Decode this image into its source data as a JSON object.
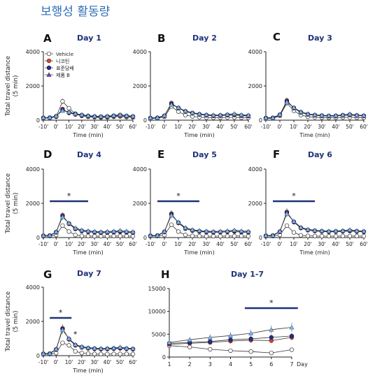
{
  "page": {
    "title": "보행성 활동량"
  },
  "colors": {
    "vehicle": "#ffffff",
    "nicotine": "#d9452c",
    "standard": "#1f2f8f",
    "treatment_b": "#7b3fa0",
    "star": "#1f3278",
    "day_title": "#1f3278",
    "series4": "#8fb4dc"
  },
  "legend": {
    "vehicle": "Vehicle",
    "nicotine": "니코틴",
    "standard": "표준담배",
    "treatment_b": "제품 B"
  },
  "chart_data": [
    {
      "panel": "A",
      "title": "Day 1",
      "type": "line",
      "ylabel": "Total travel distance\n(5 min)",
      "xlabel": "Time (min)",
      "x": [
        -10,
        -5,
        0,
        5,
        10,
        15,
        20,
        25,
        30,
        35,
        40,
        45,
        50,
        55,
        60
      ],
      "ylim": [
        0,
        4000
      ],
      "yticks": [
        0,
        2000,
        4000
      ],
      "xticks": [
        "-10'",
        "0'",
        "10'",
        "20'",
        "30'",
        "40'",
        "50'",
        "60'"
      ],
      "series": [
        {
          "name": "Vehicle",
          "values": [
            120,
            130,
            200,
            1100,
            700,
            380,
            250,
            200,
            170,
            150,
            160,
            200,
            220,
            180,
            160
          ]
        },
        {
          "name": "니코틴",
          "values": [
            130,
            140,
            220,
            650,
            420,
            330,
            270,
            230,
            200,
            190,
            200,
            230,
            260,
            220,
            200
          ]
        },
        {
          "name": "표준담배",
          "values": [
            140,
            150,
            230,
            600,
            450,
            360,
            300,
            250,
            220,
            210,
            220,
            260,
            300,
            250,
            220
          ]
        },
        {
          "name": "제품 B",
          "values": [
            150,
            160,
            250,
            550,
            480,
            380,
            320,
            270,
            240,
            230,
            240,
            280,
            320,
            270,
            240
          ]
        }
      ]
    },
    {
      "panel": "B",
      "title": "Day 2",
      "type": "line",
      "ylabel": "",
      "xlabel": "Time (min)",
      "x": [
        -10,
        -5,
        0,
        5,
        10,
        15,
        20,
        25,
        30,
        35,
        40,
        45,
        50,
        55,
        60
      ],
      "ylim": [
        0,
        4000
      ],
      "yticks": [
        0,
        2000,
        4000
      ],
      "xticks": [
        "-10'",
        "0'",
        "10'",
        "20'",
        "30'",
        "40'",
        "50'",
        "60'"
      ],
      "series": [
        {
          "name": "Vehicle",
          "values": [
            100,
            110,
            200,
            800,
            500,
            300,
            220,
            180,
            150,
            140,
            150,
            160,
            160,
            150,
            140
          ]
        },
        {
          "name": "니코틴",
          "values": [
            120,
            130,
            250,
            1000,
            700,
            500,
            400,
            330,
            280,
            250,
            260,
            290,
            300,
            260,
            240
          ]
        },
        {
          "name": "표준담배",
          "values": [
            130,
            140,
            260,
            950,
            720,
            520,
            420,
            350,
            300,
            270,
            280,
            310,
            330,
            280,
            260
          ]
        },
        {
          "name": "제품 B",
          "values": [
            140,
            150,
            280,
            900,
            740,
            540,
            440,
            370,
            330,
            300,
            310,
            340,
            380,
            320,
            290
          ]
        }
      ]
    },
    {
      "panel": "C",
      "title": "Day 3",
      "type": "line",
      "ylabel": "",
      "xlabel": "Time (min)",
      "x": [
        -10,
        -5,
        0,
        5,
        10,
        15,
        20,
        25,
        30,
        35,
        40,
        45,
        50,
        55,
        60
      ],
      "ylim": [
        0,
        4000
      ],
      "yticks": [
        0,
        2000,
        4000
      ],
      "xticks": [
        "-10'",
        "0'",
        "10'",
        "20'",
        "30'",
        "40'",
        "50'",
        "60'"
      ],
      "series": [
        {
          "name": "Vehicle",
          "values": [
            100,
            110,
            250,
            1000,
            550,
            300,
            200,
            170,
            150,
            140,
            150,
            160,
            170,
            150,
            140
          ]
        },
        {
          "name": "니코틴",
          "values": [
            120,
            130,
            300,
            1150,
            700,
            450,
            330,
            280,
            250,
            230,
            240,
            270,
            300,
            260,
            240
          ]
        },
        {
          "name": "표준담배",
          "values": [
            130,
            140,
            320,
            1100,
            720,
            470,
            350,
            300,
            270,
            250,
            260,
            290,
            330,
            280,
            260
          ]
        },
        {
          "name": "제품 B",
          "values": [
            140,
            150,
            340,
            1050,
            740,
            490,
            370,
            320,
            290,
            270,
            280,
            310,
            360,
            300,
            280
          ]
        }
      ]
    },
    {
      "panel": "D",
      "title": "Day 4",
      "type": "line",
      "ylabel": "Total travel distance\n(5 min)",
      "xlabel": "Time (min)",
      "x": [
        -10,
        -5,
        0,
        5,
        10,
        15,
        20,
        25,
        30,
        35,
        40,
        45,
        50,
        55,
        60
      ],
      "ylim": [
        0,
        4000
      ],
      "yticks": [
        0,
        2000,
        4000
      ],
      "xticks": [
        "-10'",
        "0'",
        "10'",
        "20'",
        "30'",
        "40'",
        "50'",
        "60'"
      ],
      "significance": "*",
      "series": [
        {
          "name": "Vehicle",
          "values": [
            80,
            90,
            150,
            700,
            350,
            150,
            100,
            90,
            80,
            80,
            80,
            90,
            90,
            90,
            80
          ]
        },
        {
          "name": "니코틴",
          "values": [
            100,
            110,
            300,
            1300,
            800,
            500,
            380,
            330,
            300,
            280,
            290,
            310,
            330,
            300,
            280
          ]
        },
        {
          "name": "표준담배",
          "values": [
            110,
            120,
            320,
            1250,
            820,
            520,
            400,
            350,
            320,
            300,
            310,
            330,
            360,
            320,
            300
          ]
        },
        {
          "name": "제품 B",
          "values": [
            120,
            130,
            340,
            1200,
            850,
            560,
            440,
            390,
            360,
            340,
            350,
            370,
            420,
            370,
            340
          ]
        }
      ]
    },
    {
      "panel": "E",
      "title": "Day 5",
      "type": "line",
      "ylabel": "",
      "xlabel": "Time (min)",
      "x": [
        -10,
        -5,
        0,
        5,
        10,
        15,
        20,
        25,
        30,
        35,
        40,
        45,
        50,
        55,
        60
      ],
      "ylim": [
        0,
        4000
      ],
      "yticks": [
        0,
        2000,
        4000
      ],
      "xticks": [
        "-10'",
        "0'",
        "10'",
        "20'",
        "30'",
        "40'",
        "50'",
        "60'"
      ],
      "significance": "*",
      "series": [
        {
          "name": "Vehicle",
          "values": [
            80,
            90,
            150,
            750,
            350,
            150,
            100,
            90,
            80,
            80,
            80,
            90,
            90,
            90,
            80
          ]
        },
        {
          "name": "니코틴",
          "values": [
            100,
            110,
            320,
            1400,
            850,
            520,
            400,
            350,
            320,
            300,
            310,
            330,
            350,
            320,
            300
          ]
        },
        {
          "name": "표준담배",
          "values": [
            110,
            120,
            340,
            1350,
            870,
            540,
            420,
            370,
            340,
            320,
            330,
            350,
            380,
            340,
            320
          ]
        },
        {
          "name": "제품 B",
          "values": [
            120,
            130,
            360,
            1300,
            900,
            580,
            460,
            410,
            380,
            360,
            370,
            390,
            440,
            390,
            360
          ]
        }
      ]
    },
    {
      "panel": "F",
      "title": "Day 6",
      "type": "line",
      "ylabel": "",
      "xlabel": "Time (min)",
      "x": [
        -10,
        -5,
        0,
        5,
        10,
        15,
        20,
        25,
        30,
        35,
        40,
        45,
        50,
        55,
        60
      ],
      "ylim": [
        0,
        4000
      ],
      "yticks": [
        0,
        2000,
        4000
      ],
      "xticks": [
        "-10'",
        "0'",
        "10'",
        "20'",
        "30'",
        "40'",
        "50'",
        "60'"
      ],
      "significance": "*",
      "series": [
        {
          "name": "Vehicle",
          "values": [
            80,
            90,
            150,
            700,
            300,
            130,
            100,
            90,
            80,
            80,
            80,
            90,
            90,
            90,
            80
          ]
        },
        {
          "name": "니코틴",
          "values": [
            100,
            110,
            330,
            1500,
            900,
            550,
            430,
            380,
            350,
            330,
            340,
            360,
            380,
            350,
            330
          ]
        },
        {
          "name": "표준담배",
          "values": [
            110,
            120,
            350,
            1450,
            920,
            570,
            450,
            400,
            370,
            350,
            360,
            380,
            410,
            370,
            350
          ]
        },
        {
          "name": "제품 B",
          "values": [
            120,
            130,
            370,
            1400,
            950,
            600,
            480,
            430,
            400,
            380,
            390,
            410,
            460,
            400,
            380
          ]
        }
      ]
    },
    {
      "panel": "G",
      "title": "Day 7",
      "type": "line",
      "ylabel": "Total travel distance\n(5 min)",
      "xlabel": "Time (min)",
      "x": [
        -10,
        -5,
        0,
        5,
        10,
        15,
        20,
        25,
        30,
        35,
        40,
        45,
        50,
        55,
        60
      ],
      "ylim": [
        0,
        4000
      ],
      "yticks": [
        0,
        2000,
        4000
      ],
      "xticks": [
        "-10'",
        "0'",
        "10'",
        "20'",
        "30'",
        "40'",
        "50'",
        "60'"
      ],
      "significance": "*",
      "annotation": "*",
      "series": [
        {
          "name": "Vehicle",
          "values": [
            80,
            90,
            150,
            750,
            600,
            250,
            150,
            120,
            100,
            90,
            90,
            100,
            100,
            100,
            90
          ]
        },
        {
          "name": "니코틴",
          "values": [
            100,
            110,
            350,
            1600,
            950,
            600,
            480,
            420,
            390,
            370,
            380,
            400,
            420,
            390,
            370
          ]
        },
        {
          "name": "표준담배",
          "values": [
            110,
            120,
            370,
            1550,
            970,
            620,
            500,
            440,
            410,
            390,
            400,
            420,
            450,
            410,
            390
          ]
        },
        {
          "name": "제품 B",
          "values": [
            120,
            130,
            390,
            1500,
            1000,
            650,
            530,
            470,
            440,
            420,
            430,
            450,
            500,
            440,
            420
          ]
        }
      ]
    },
    {
      "panel": "H",
      "title": "Day 1-7",
      "type": "line",
      "ylabel": "",
      "xlabel": "Day",
      "x": [
        1,
        2,
        3,
        4,
        5,
        6,
        7
      ],
      "ylim": [
        0,
        15000
      ],
      "yticks": [
        0,
        5000,
        10000,
        15000
      ],
      "xticks": [
        "1",
        "2",
        "3",
        "4",
        "5",
        "6",
        "7"
      ],
      "significance": "*",
      "series": [
        {
          "name": "Vehicle",
          "values": [
            2500,
            2200,
            1700,
            1400,
            1200,
            900,
            1600
          ]
        },
        {
          "name": "니코틴",
          "values": [
            2800,
            3000,
            3200,
            3500,
            3700,
            3600,
            4300
          ]
        },
        {
          "name": "표준담배",
          "values": [
            3000,
            3200,
            3400,
            3800,
            4000,
            4300,
            4600
          ]
        },
        {
          "name": "제품 B",
          "values": [
            3200,
            3800,
            4300,
            4700,
            5200,
            6000,
            6500
          ]
        }
      ]
    }
  ]
}
